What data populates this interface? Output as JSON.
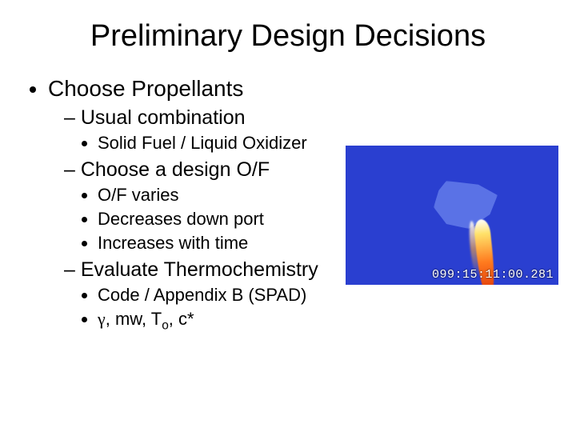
{
  "title": "Preliminary Design Decisions",
  "b1": "Choose Propellants",
  "b1_1": "Usual combination",
  "b1_1_1": "Solid Fuel / Liquid Oxidizer",
  "b1_2": "Choose a design O/F",
  "b1_2_1": "O/F varies",
  "b1_2_2": "Decreases down port",
  "b1_2_3": "Increases with time",
  "b1_3": "Evaluate Thermochemistry",
  "b1_3_1": "Code / Appendix B (SPAD)",
  "b1_3_2_gamma": "γ",
  "b1_3_2_mw": ", mw, T",
  "b1_3_2_sub": "o",
  "b1_3_2_tail": ", c*",
  "image": {
    "background_color": "#2a3fd0",
    "timestamp": "099:15:11:00.281"
  }
}
